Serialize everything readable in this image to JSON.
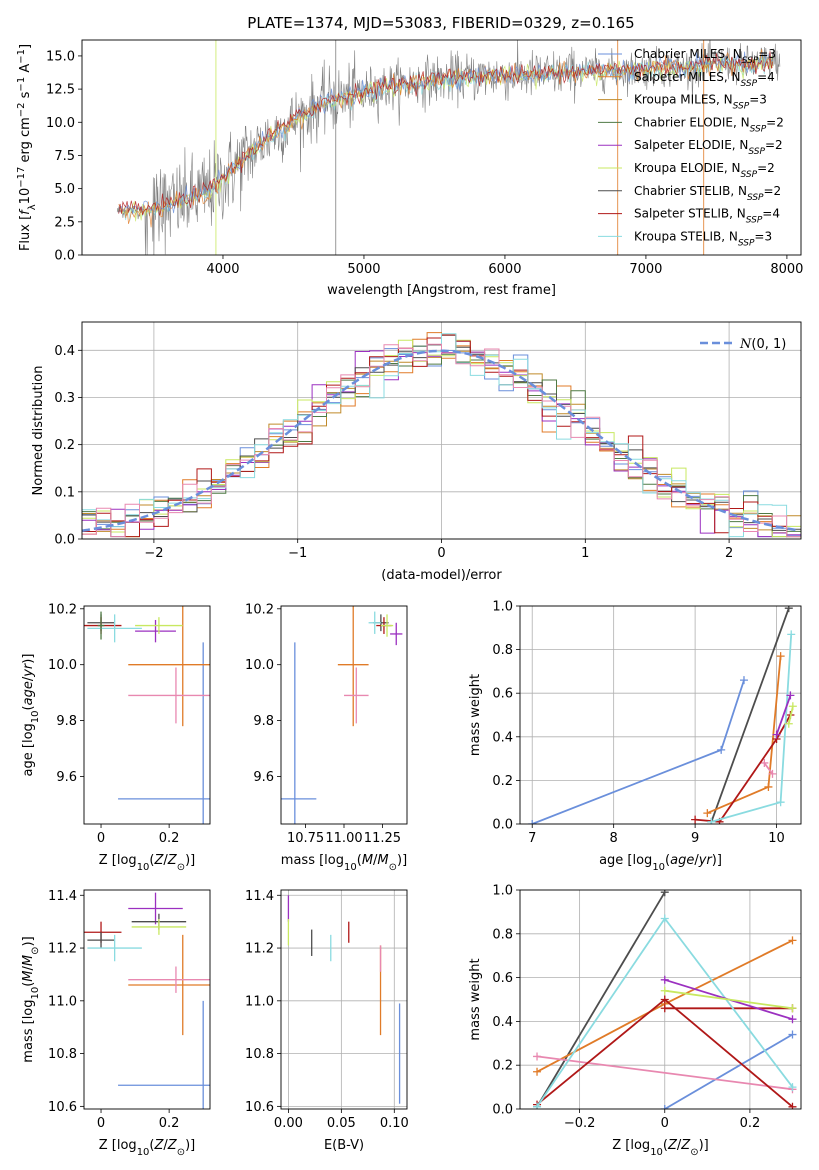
{
  "title": "PLATE=1374, MJD=53083, FIBERID=0329, z=0.165",
  "colors": {
    "chabrier_miles": "#6a8fdb",
    "salpeter_miles": "#e07b28",
    "kroupa_miles": "#c08a2a",
    "chabrier_elodie": "#4f7a45",
    "salpeter_elodie": "#9b30c0",
    "kroupa_elodie": "#c8e860",
    "chabrier_stelib": "#4d4d4d",
    "salpeter_stelib": "#b01818",
    "kroupa_stelib": "#8adbe0",
    "pink": "#e888b0",
    "data": "#808080"
  },
  "chart_data": [
    {
      "id": "spectrum",
      "type": "line",
      "xlabel": "wavelength [Angstrom, rest frame]",
      "ylabel": "Flux [f_λ 10^-17 erg cm^-2 s^-1 A^-1]",
      "xlim": [
        3000,
        8100
      ],
      "ylim": [
        0,
        16.2
      ],
      "xticks": [
        4000,
        5000,
        6000,
        7000,
        8000
      ],
      "yticks": [
        0.0,
        2.5,
        5.0,
        7.5,
        10.0,
        12.5,
        15.0
      ],
      "grid": false,
      "legend_position": "right",
      "legend": [
        {
          "label": "Chabrier MILES, N",
          "sub": "SSP",
          "eq": "=3",
          "color_key": "chabrier_miles"
        },
        {
          "label": "Salpeter MILES, N",
          "sub": "SSP",
          "eq": "=4",
          "color_key": "salpeter_miles"
        },
        {
          "label": "Kroupa MILES, N",
          "sub": "SSP",
          "eq": "=3",
          "color_key": "kroupa_miles"
        },
        {
          "label": "Chabrier ELODIE, N",
          "sub": "SSP",
          "eq": "=2",
          "color_key": "chabrier_elodie"
        },
        {
          "label": "Salpeter ELODIE, N",
          "sub": "SSP",
          "eq": "=2",
          "color_key": "salpeter_elodie"
        },
        {
          "label": "Kroupa ELODIE, N",
          "sub": "SSP",
          "eq": "=2",
          "color_key": "kroupa_elodie"
        },
        {
          "label": "Chabrier STELIB, N",
          "sub": "SSP",
          "eq": "=2",
          "color_key": "chabrier_stelib"
        },
        {
          "label": "Salpeter STELIB, N",
          "sub": "SSP",
          "eq": "=4",
          "color_key": "salpeter_stelib"
        },
        {
          "label": "Kroupa STELIB, N",
          "sub": "SSP",
          "eq": "=3",
          "color_key": "kroupa_stelib"
        }
      ],
      "continuum": {
        "x": [
          3250,
          3500,
          3700,
          3900,
          4100,
          4300,
          4500,
          4700,
          4900,
          5100,
          5300,
          5500,
          5700,
          5900,
          6100,
          6300,
          6500,
          6700,
          6900,
          7100,
          7300,
          7500,
          7700,
          7900
        ],
        "y": [
          3.3,
          3.4,
          4.0,
          4.8,
          6.7,
          8.7,
          10.1,
          11.4,
          12.0,
          12.5,
          12.9,
          13.2,
          13.4,
          13.5,
          13.5,
          13.6,
          13.8,
          13.9,
          13.9,
          14.1,
          14.1,
          14.5,
          14.3,
          14.6
        ]
      }
    },
    {
      "id": "residuals",
      "type": "step",
      "xlabel": "(data-model)/error",
      "ylabel": "Normed distribution",
      "xlim": [
        -2.5,
        2.5
      ],
      "ylim": [
        0,
        0.46
      ],
      "xticks": [
        -2,
        -1,
        0,
        1,
        2
      ],
      "yticks": [
        0.0,
        0.1,
        0.2,
        0.3,
        0.4
      ],
      "grid": true,
      "legend_position": "top-right",
      "legend_label": "N(0,1)",
      "gaussian": {
        "mu": 0,
        "sigma": 1,
        "color_key": "chabrier_miles"
      },
      "bin_width": 0.1
    },
    {
      "id": "age_vs_Z",
      "type": "errorbar",
      "xlabel": "Z [log10(Z/Z⊙)]",
      "ylabel": "age [log10(age/yr)]",
      "xlim": [
        -0.05,
        0.32
      ],
      "ylim": [
        9.43,
        10.21
      ],
      "xticks": [
        0.0,
        0.2
      ],
      "yticks": [
        9.6,
        9.8,
        10.0,
        10.2
      ],
      "grid": false,
      "points": [
        {
          "x": 0.3,
          "xerr": 0.25,
          "y": 9.52,
          "yerr": 0.56,
          "color_key": "chabrier_miles"
        },
        {
          "x": 0.24,
          "xerr": 0.16,
          "y": 10.0,
          "yerr": 0.22,
          "color_key": "salpeter_miles"
        },
        {
          "x": 0.22,
          "xerr": 0.14,
          "y": 9.89,
          "yerr": 0.1,
          "color_key": "pink"
        },
        {
          "x": 0.0,
          "xerr": 0.04,
          "y": 10.15,
          "yerr": 0.03,
          "color_key": "chabrier_stelib"
        },
        {
          "x": 0.0,
          "xerr": 0.06,
          "y": 10.14,
          "yerr": 0.03,
          "color_key": "salpeter_stelib"
        },
        {
          "x": 0.04,
          "xerr": 0.08,
          "y": 10.13,
          "yerr": 0.05,
          "color_key": "kroupa_stelib"
        },
        {
          "x": 0.16,
          "xerr": 0.06,
          "y": 10.12,
          "yerr": 0.04,
          "color_key": "salpeter_elodie"
        },
        {
          "x": 0.17,
          "xerr": 0.07,
          "y": 10.14,
          "yerr": 0.03,
          "color_key": "kroupa_elodie"
        },
        {
          "x": 0.0,
          "xerr": 0.01,
          "y": 10.14,
          "yerr": 0.05,
          "color_key": "chabrier_elodie"
        }
      ]
    },
    {
      "id": "age_vs_mass",
      "type": "errorbar",
      "xlabel": "mass [log10(M/M⊙)]",
      "ylabel": "",
      "xlim": [
        10.59,
        11.41
      ],
      "ylim": [
        9.43,
        10.21
      ],
      "xticks": [
        10.75,
        11.0,
        11.25
      ],
      "xticklabels": [
        "10.75",
        "11.00",
        "11.25"
      ],
      "yticks": [
        9.6,
        9.8,
        10.0,
        10.2
      ],
      "grid": false,
      "points": [
        {
          "x": 10.68,
          "xerr": 0.14,
          "y": 9.52,
          "yerr": 0.56,
          "color_key": "chabrier_miles"
        },
        {
          "x": 11.06,
          "xerr": 0.1,
          "y": 10.0,
          "yerr": 0.22,
          "color_key": "salpeter_miles"
        },
        {
          "x": 11.08,
          "xerr": 0.08,
          "y": 9.89,
          "yerr": 0.1,
          "color_key": "pink"
        },
        {
          "x": 11.24,
          "xerr": 0.05,
          "y": 10.15,
          "yerr": 0.03,
          "color_key": "chabrier_stelib"
        },
        {
          "x": 11.26,
          "xerr": 0.05,
          "y": 10.14,
          "yerr": 0.03,
          "color_key": "salpeter_stelib"
        },
        {
          "x": 11.2,
          "xerr": 0.04,
          "y": 10.15,
          "yerr": 0.04,
          "color_key": "kroupa_stelib"
        },
        {
          "x": 11.34,
          "xerr": 0.04,
          "y": 10.11,
          "yerr": 0.04,
          "color_key": "salpeter_elodie"
        },
        {
          "x": 11.28,
          "xerr": 0.04,
          "y": 10.14,
          "yerr": 0.04,
          "color_key": "kroupa_elodie"
        }
      ]
    },
    {
      "id": "massweight_vs_age",
      "type": "line",
      "xlabel": "age [log10(age/yr)]",
      "ylabel": "mass weight",
      "xlim": [
        6.85,
        10.3
      ],
      "ylim": [
        0,
        1.0
      ],
      "xticks": [
        7,
        8,
        9,
        10
      ],
      "yticks": [
        0.0,
        0.2,
        0.4,
        0.6,
        0.8,
        1.0
      ],
      "grid": true,
      "series": [
        {
          "color_key": "chabrier_miles",
          "x": [
            7.0,
            9.32,
            9.6
          ],
          "y": [
            0.0,
            0.34,
            0.66
          ]
        },
        {
          "color_key": "chabrier_stelib",
          "x": [
            9.2,
            10.15
          ],
          "y": [
            0.01,
            0.99
          ]
        },
        {
          "color_key": "salpeter_miles",
          "x": [
            9.15,
            9.9,
            10.05
          ],
          "y": [
            0.05,
            0.17,
            0.77
          ]
        },
        {
          "color_key": "pink",
          "x": [
            9.85,
            9.95
          ],
          "y": [
            0.28,
            0.23
          ]
        },
        {
          "color_key": "salpeter_stelib",
          "x": [
            9.0,
            9.3,
            10.0,
            10.17
          ],
          "y": [
            0.02,
            0.01,
            0.39,
            0.5
          ]
        },
        {
          "color_key": "kroupa_stelib",
          "x": [
            9.2,
            10.05,
            10.18
          ],
          "y": [
            0.01,
            0.1,
            0.87
          ]
        },
        {
          "color_key": "salpeter_elodie",
          "x": [
            10.0,
            10.17
          ],
          "y": [
            0.41,
            0.59
          ]
        },
        {
          "color_key": "kroupa_elodie",
          "x": [
            10.15,
            10.2
          ],
          "y": [
            0.46,
            0.54
          ]
        }
      ]
    },
    {
      "id": "mass_vs_Z",
      "type": "errorbar",
      "xlabel": "Z [log10(Z/Z⊙)]",
      "ylabel": "mass [log10(M/M⊙)]",
      "xlim": [
        -0.05,
        0.32
      ],
      "ylim": [
        10.59,
        11.42
      ],
      "xticks": [
        0.0,
        0.2
      ],
      "yticks": [
        10.6,
        10.8,
        11.0,
        11.2,
        11.4
      ],
      "grid": false,
      "points": [
        {
          "x": 0.3,
          "xerr": 0.25,
          "y": 10.68,
          "yerr": 0.32,
          "color_key": "chabrier_miles"
        },
        {
          "x": 0.24,
          "xerr": 0.16,
          "y": 11.06,
          "yerr": 0.19,
          "color_key": "salpeter_miles"
        },
        {
          "x": 0.22,
          "xerr": 0.14,
          "y": 11.08,
          "yerr": 0.05,
          "color_key": "pink"
        },
        {
          "x": 0.0,
          "xerr": 0.06,
          "y": 11.26,
          "yerr": 0.04,
          "color_key": "salpeter_stelib"
        },
        {
          "x": 0.0,
          "xerr": 0.04,
          "y": 11.23,
          "yerr": 0.03,
          "color_key": "chabrier_stelib"
        },
        {
          "x": 0.04,
          "xerr": 0.08,
          "y": 11.2,
          "yerr": 0.05,
          "color_key": "kroupa_stelib"
        },
        {
          "x": 0.16,
          "xerr": 0.08,
          "y": 11.35,
          "yerr": 0.06,
          "color_key": "salpeter_elodie"
        },
        {
          "x": 0.17,
          "xerr": 0.08,
          "y": 11.3,
          "yerr": 0.03,
          "color_key": "chabrier_stelib"
        },
        {
          "x": 0.17,
          "xerr": 0.08,
          "y": 11.28,
          "yerr": 0.03,
          "color_key": "kroupa_elodie"
        }
      ]
    },
    {
      "id": "mass_vs_ebv",
      "type": "errorbar",
      "xlabel": "E(B-V)",
      "ylabel": "",
      "xlim": [
        -0.007,
        0.112
      ],
      "ylim": [
        10.59,
        11.42
      ],
      "xticks": [
        0.0,
        0.05,
        0.1
      ],
      "xticklabels": [
        "0.00",
        "0.05",
        "0.10"
      ],
      "yticks": [
        10.6,
        10.8,
        11.0,
        11.2,
        11.4
      ],
      "grid": true,
      "points": [
        {
          "x": 0.105,
          "y": 10.8,
          "yerr": 0.19,
          "color_key": "chabrier_miles"
        },
        {
          "x": 0.087,
          "y": 11.04,
          "yerr": 0.17,
          "color_key": "salpeter_miles"
        },
        {
          "x": 0.087,
          "y": 11.16,
          "yerr": 0.05,
          "color_key": "pink"
        },
        {
          "x": 0.057,
          "y": 11.26,
          "yerr": 0.04,
          "color_key": "salpeter_stelib"
        },
        {
          "x": 0.04,
          "y": 11.2,
          "yerr": 0.05,
          "color_key": "kroupa_stelib"
        },
        {
          "x": 0.022,
          "y": 11.22,
          "yerr": 0.05,
          "color_key": "chabrier_stelib"
        },
        {
          "x": 0.0,
          "y": 11.35,
          "yerr": 0.05,
          "color_key": "salpeter_elodie"
        },
        {
          "x": 0.0,
          "y": 11.26,
          "yerr": 0.05,
          "color_key": "kroupa_elodie"
        }
      ]
    },
    {
      "id": "massweight_vs_Z",
      "type": "line",
      "xlabel": "Z [log10(Z/Z⊙)]",
      "ylabel": "mass weight",
      "xlim": [
        -0.34,
        0.32
      ],
      "ylim": [
        0,
        1.0
      ],
      "xticks": [
        -0.2,
        0.0,
        0.2
      ],
      "yticks": [
        0.0,
        0.2,
        0.4,
        0.6,
        0.8,
        1.0
      ],
      "grid": true,
      "series": [
        {
          "color_key": "chabrier_miles",
          "x": [
            0.0,
            0.3
          ],
          "y": [
            0.0,
            0.34
          ]
        },
        {
          "color_key": "chabrier_stelib",
          "x": [
            -0.3,
            0.0
          ],
          "y": [
            0.01,
            0.99
          ]
        },
        {
          "color_key": "salpeter_miles",
          "x": [
            -0.3,
            0.0,
            0.3
          ],
          "y": [
            0.17,
            0.48,
            0.77
          ]
        },
        {
          "color_key": "pink",
          "x": [
            -0.3,
            0.3
          ],
          "y": [
            0.24,
            0.09
          ]
        },
        {
          "color_key": "salpeter_stelib",
          "x": [
            -0.3,
            0.0,
            0.3
          ],
          "y": [
            0.02,
            0.5,
            0.01
          ]
        },
        {
          "color_key": "salpeter_stelib",
          "x": [
            0.0,
            0.3
          ],
          "y": [
            0.46,
            0.46
          ]
        },
        {
          "color_key": "kroupa_stelib",
          "x": [
            -0.3,
            0.0,
            0.3
          ],
          "y": [
            0.01,
            0.87,
            0.1
          ]
        },
        {
          "color_key": "salpeter_elodie",
          "x": [
            0.0,
            0.3
          ],
          "y": [
            0.59,
            0.41
          ]
        },
        {
          "color_key": "kroupa_elodie",
          "x": [
            0.0,
            0.3
          ],
          "y": [
            0.54,
            0.46
          ]
        }
      ]
    }
  ]
}
